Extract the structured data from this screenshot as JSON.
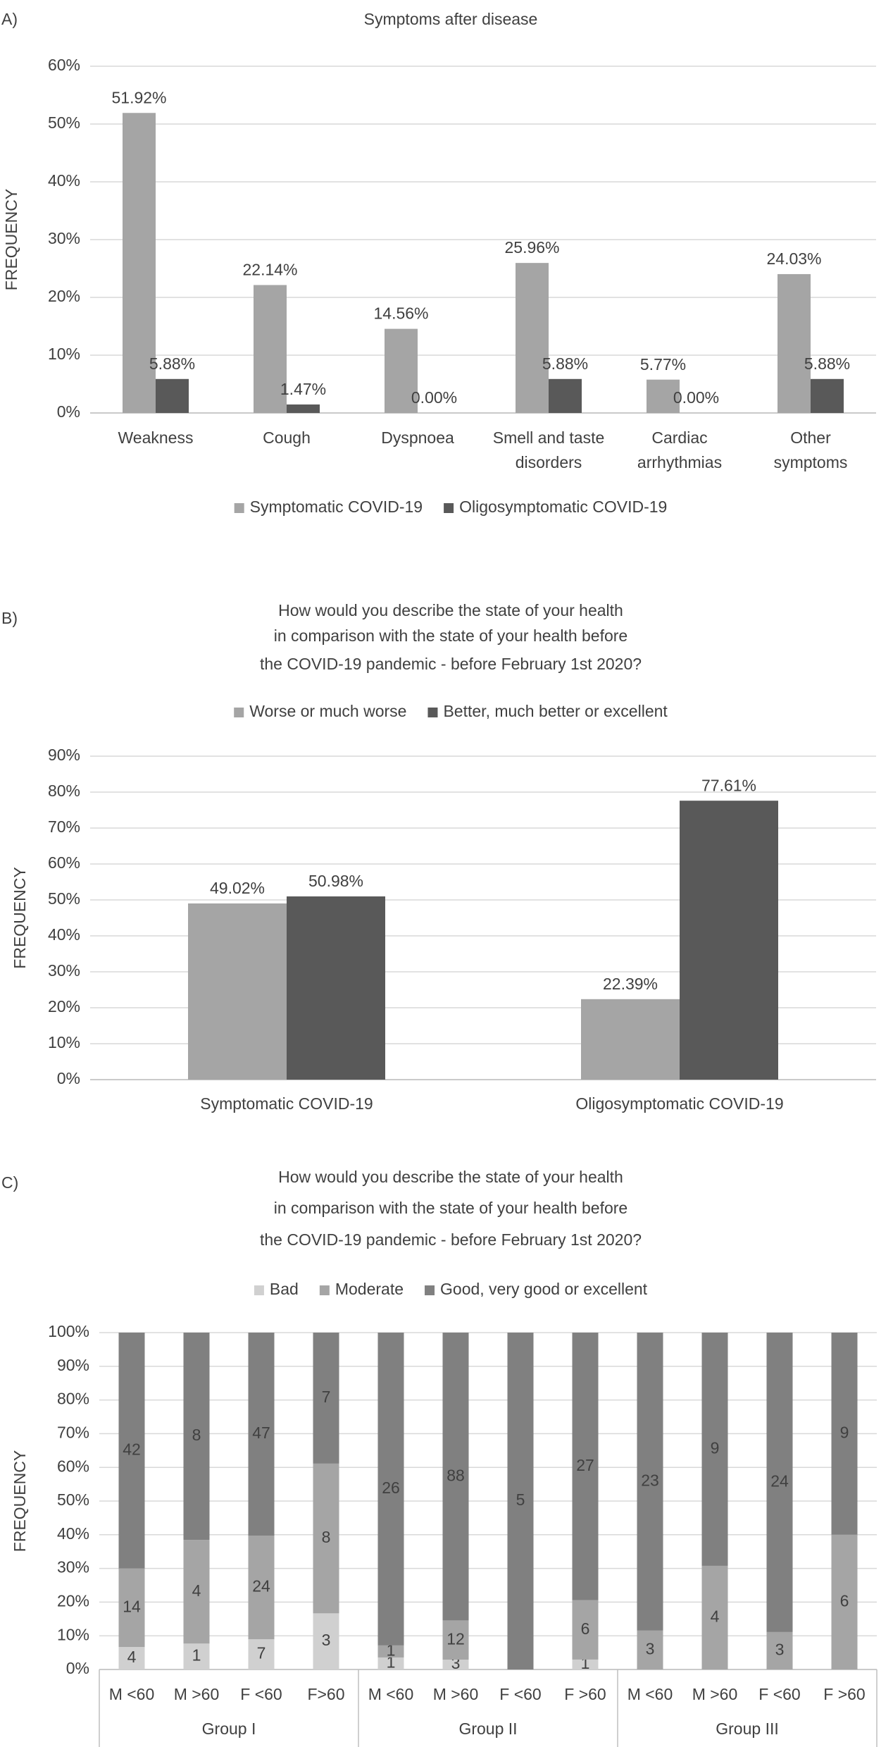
{
  "chart_data": [
    {
      "panel": "A)",
      "type": "bar",
      "title": [
        "Symptoms after disease"
      ],
      "ylabel": "FREQUENCY",
      "categories": [
        "Weakness",
        "Cough",
        "Dyspnoea",
        [
          "Smell and taste",
          "disorders"
        ],
        [
          "Cardiac",
          "arrhythmias"
        ],
        [
          "Other",
          "symptoms"
        ]
      ],
      "series": [
        {
          "name": "Symptomatic COVID-19",
          "color": "#a5a5a5",
          "values": [
            51.92,
            22.14,
            14.56,
            25.96,
            5.77,
            24.03
          ],
          "value_labels": [
            "51.92%",
            "22.14%",
            "14.56%",
            "25.96%",
            "5.77%",
            "24.03%"
          ]
        },
        {
          "name": "Oligosymptomatic COVID-19",
          "color": "#595959",
          "values": [
            5.88,
            1.47,
            0,
            5.88,
            0,
            5.88
          ],
          "value_labels": [
            "5.88%",
            "1.47%",
            "0.00%",
            "5.88%",
            "0.00%",
            "5.88%"
          ]
        }
      ],
      "ylim": [
        0,
        60
      ],
      "yticks": [
        {
          "value": 0,
          "label": "0%"
        },
        {
          "value": 10,
          "label": "10%"
        },
        {
          "value": 20,
          "label": "20%"
        },
        {
          "value": 30,
          "label": "30%"
        },
        {
          "value": 40,
          "label": "40%"
        },
        {
          "value": 50,
          "label": "50%"
        },
        {
          "value": 60,
          "label": "60%"
        }
      ],
      "grid": true,
      "legend": "bottom"
    },
    {
      "panel": "B)",
      "type": "bar",
      "title": [
        "How would you describe the state of your health",
        "in comparison with the state of your health before",
        "the COVID-19 pandemic - before February 1st 2020?"
      ],
      "ylabel": "FREQUENCY",
      "categories": [
        "Symptomatic COVID-19",
        "Oligosymptomatic COVID-19"
      ],
      "series": [
        {
          "name": "Worse or much worse",
          "color": "#a5a5a5",
          "values": [
            49.02,
            22.39
          ],
          "value_labels": [
            "49.02%",
            "22.39%"
          ]
        },
        {
          "name": "Better, much better or excellent",
          "color": "#595959",
          "values": [
            50.98,
            77.61
          ],
          "value_labels": [
            "50.98%",
            "77.61%"
          ]
        }
      ],
      "ylim": [
        0,
        90
      ],
      "yticks": [
        {
          "value": 0,
          "label": "0%"
        },
        {
          "value": 10,
          "label": "10%"
        },
        {
          "value": 20,
          "label": "20%"
        },
        {
          "value": 30,
          "label": "30%"
        },
        {
          "value": 40,
          "label": "40%"
        },
        {
          "value": 50,
          "label": "50%"
        },
        {
          "value": 60,
          "label": "60%"
        },
        {
          "value": 70,
          "label": "70%"
        },
        {
          "value": 80,
          "label": "80%"
        },
        {
          "value": 90,
          "label": "90%"
        }
      ],
      "grid": true,
      "legend": "top"
    },
    {
      "panel": "C)",
      "type": "stacked_percent_bar",
      "title": [
        "How would you describe the state of your health",
        "in comparison with the state of your health before",
        "the COVID-19 pandemic - before February 1st 2020?"
      ],
      "ylabel": "FREQUENCY",
      "groups": [
        {
          "name": "Group I",
          "categories": [
            "M <60",
            "M >60",
            "F <60",
            "F>60"
          ]
        },
        {
          "name": "Group II",
          "categories": [
            "M <60",
            "M >60",
            "F <60",
            "F >60"
          ]
        },
        {
          "name": "Group III",
          "categories": [
            "M <60",
            "M >60",
            "F <60",
            "F >60"
          ]
        }
      ],
      "series": [
        {
          "name": "Bad",
          "color": "#d0d0d0",
          "values": [
            4,
            1,
            7,
            3,
            1,
            3,
            0,
            1,
            0,
            0,
            0,
            0
          ]
        },
        {
          "name": "Moderate",
          "color": "#a5a5a5",
          "values": [
            14,
            4,
            24,
            8,
            1,
            12,
            0,
            6,
            3,
            4,
            3,
            6
          ]
        },
        {
          "name": "Good, very good or excellent",
          "color": "#808080",
          "values": [
            42,
            8,
            47,
            7,
            26,
            88,
            5,
            27,
            23,
            9,
            24,
            9
          ]
        }
      ],
      "ylim": [
        0,
        100
      ],
      "yticks": [
        {
          "value": 0,
          "label": "0%"
        },
        {
          "value": 10,
          "label": "10%"
        },
        {
          "value": 20,
          "label": "20%"
        },
        {
          "value": 30,
          "label": "30%"
        },
        {
          "value": 40,
          "label": "40%"
        },
        {
          "value": 50,
          "label": "50%"
        },
        {
          "value": 60,
          "label": "60%"
        },
        {
          "value": 70,
          "label": "70%"
        },
        {
          "value": 80,
          "label": "80%"
        },
        {
          "value": 90,
          "label": "90%"
        },
        {
          "value": 100,
          "label": "100%"
        }
      ],
      "grid": true,
      "legend": "top"
    }
  ]
}
